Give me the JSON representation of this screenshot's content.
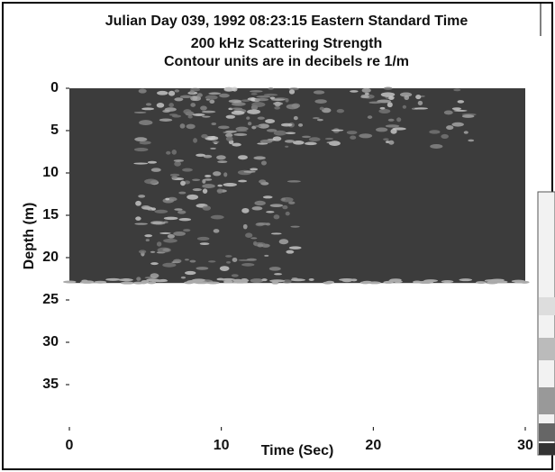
{
  "chart_data": {
    "type": "echogram",
    "title": "Julian Day 039, 1992 08:23:15 Eastern Standard Time",
    "subtitle": "200 kHz Scattering Strength",
    "note": "Contour units are in decibels re 1/m",
    "x_label": "Time (Sec)",
    "y_label": "Depth (m)",
    "xlim": [
      0,
      30
    ],
    "xticks": [
      0,
      10,
      20,
      30
    ],
    "ylim": [
      0,
      40
    ],
    "yticks": [
      0,
      5,
      10,
      15,
      20,
      25,
      30,
      35
    ],
    "y_inverted": true,
    "seafloor_depth": 23,
    "color": "#3c3c3c"
  }
}
